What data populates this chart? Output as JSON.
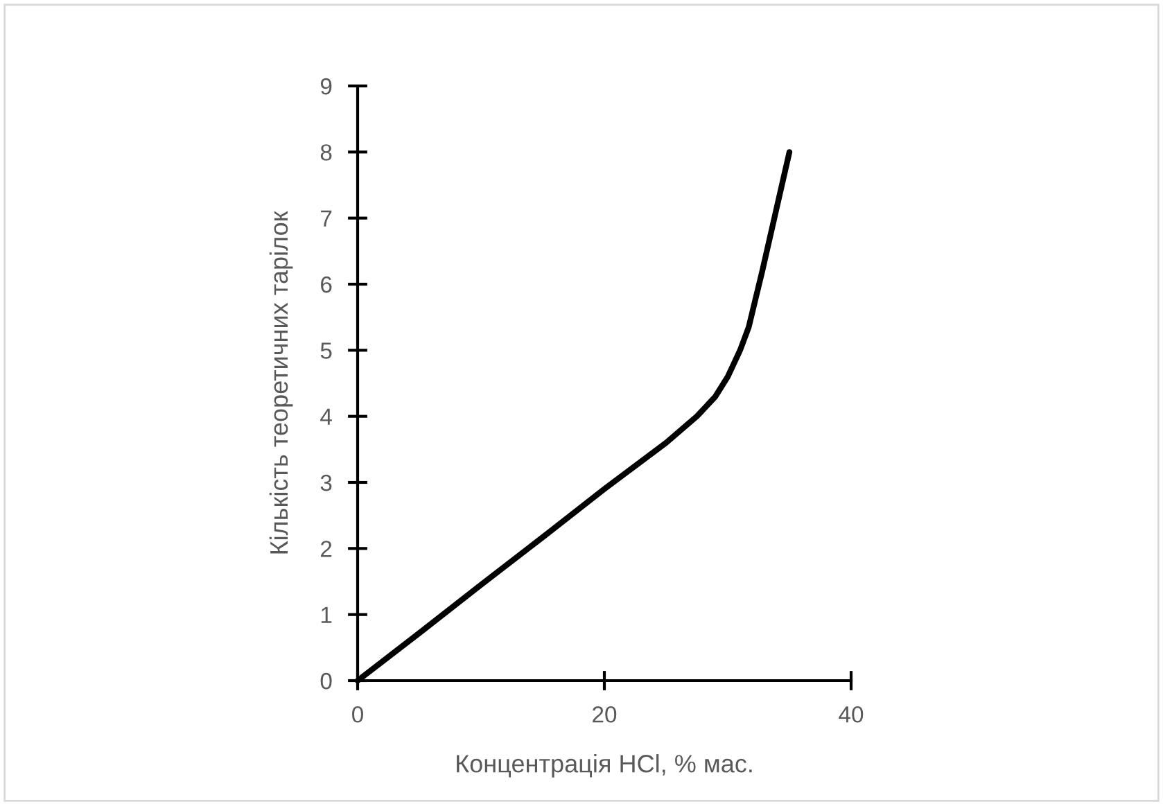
{
  "chart_data": {
    "type": "line",
    "xlabel": "Концентрація HCl, % мас.",
    "ylabel": "Кількість теоретичних тарілок",
    "series": [
      {
        "color": "#000000",
        "x": [
          0,
          5,
          10,
          15,
          20,
          25,
          27.5,
          29,
          30,
          30.5,
          31,
          31.7,
          32.8,
          33.9,
          35
        ],
        "values": [
          0,
          0.72,
          1.45,
          2.17,
          2.9,
          3.6,
          4.0,
          4.3,
          4.6,
          4.8,
          5.0,
          5.35,
          6.2,
          7.1,
          8.0
        ]
      }
    ],
    "xlim": [
      0,
      40
    ],
    "xticks": [
      0,
      20,
      40
    ],
    "ylim": [
      0,
      9
    ],
    "yticks": [
      0,
      1,
      2,
      3,
      4,
      5,
      6,
      7,
      8,
      9
    ],
    "grid": false,
    "marker": "none",
    "line_style": "solid"
  }
}
